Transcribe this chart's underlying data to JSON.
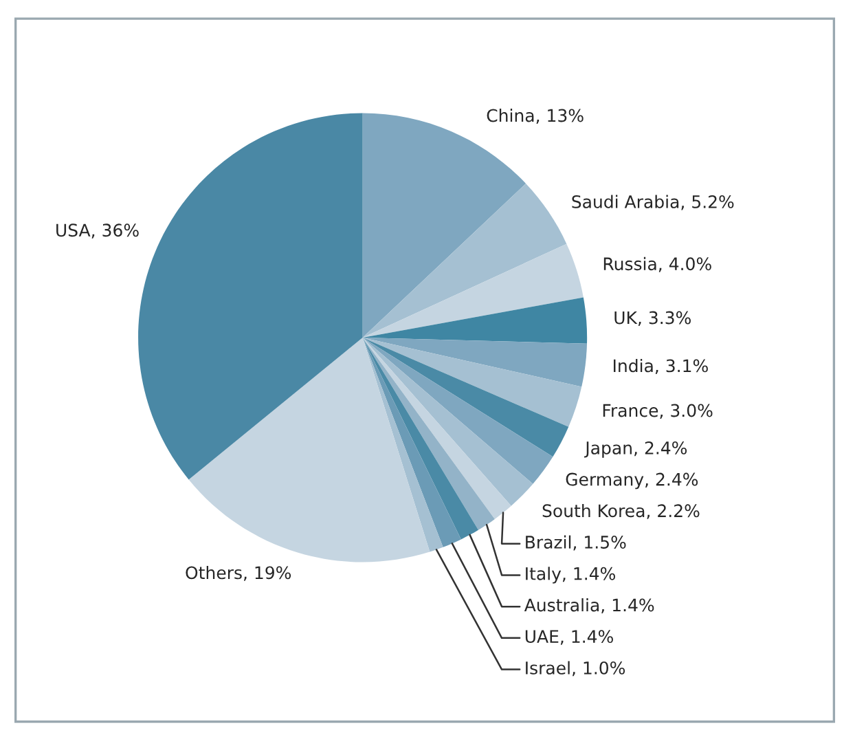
{
  "chart_data": {
    "type": "pie",
    "categories": [
      "China",
      "Saudi Arabia",
      "Russia",
      "UK",
      "India",
      "France",
      "Japan",
      "Germany",
      "South Korea",
      "Brazil",
      "Italy",
      "Australia",
      "UAE",
      "Israel",
      "Others",
      "USA"
    ],
    "values": [
      13,
      5.2,
      4.0,
      3.3,
      3.1,
      3.0,
      2.4,
      2.4,
      2.2,
      1.5,
      1.4,
      1.4,
      1.4,
      1.0,
      19,
      36
    ],
    "value_labels": [
      "13%",
      "5.2%",
      "4.0%",
      "3.3%",
      "3.1%",
      "3.0%",
      "2.4%",
      "2.4%",
      "2.2%",
      "1.5%",
      "1.4%",
      "1.4%",
      "1.4%",
      "1.0%",
      "19%",
      "36%"
    ],
    "colors": [
      "#7fa7c0",
      "#a5c0d2",
      "#c5d5e1",
      "#3f86a3",
      "#7fa7c0",
      "#a5c0d2",
      "#4a8aa6",
      "#7fa7c0",
      "#a5c0d2",
      "#c5d5e1",
      "#93b3c8",
      "#4a8aa6",
      "#6b9bb6",
      "#a5c0d2",
      "#c5d5e1",
      "#4a88a5"
    ],
    "legend": false
  }
}
